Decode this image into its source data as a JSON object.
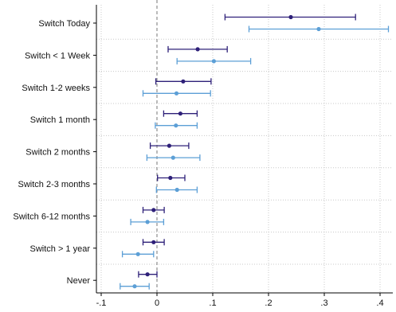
{
  "chart_data": {
    "type": "scatter",
    "subtype": "coefficient-plot-with-ci",
    "categories": [
      "Switch Today",
      "Switch < 1 Week",
      "Switch 1-2 weeks",
      "Switch 1 month",
      "Switch 2 months",
      "Switch 2-3 months",
      "Switch 6-12 months",
      "Switch > 1 year",
      "Never"
    ],
    "series": [
      {
        "color": "#2e2079",
        "estimate": [
          0.24,
          0.073,
          0.047,
          0.042,
          0.022,
          0.024,
          -0.006,
          -0.006,
          -0.017
        ],
        "ci_low": [
          0.122,
          0.02,
          -0.002,
          0.012,
          -0.012,
          0.001,
          -0.025,
          -0.025,
          -0.033
        ],
        "ci_high": [
          0.356,
          0.126,
          0.097,
          0.072,
          0.057,
          0.05,
          0.013,
          0.013,
          0.0
        ]
      },
      {
        "color": "#5c9fd6",
        "estimate": [
          0.29,
          0.102,
          0.035,
          0.034,
          0.029,
          0.036,
          -0.017,
          -0.034,
          -0.04
        ],
        "ci_low": [
          0.165,
          0.036,
          -0.025,
          -0.003,
          -0.018,
          -0.001,
          -0.047,
          -0.062,
          -0.066
        ],
        "ci_high": [
          0.415,
          0.168,
          0.096,
          0.072,
          0.077,
          0.072,
          0.012,
          -0.006,
          -0.014
        ]
      }
    ],
    "x_ticks": [
      -0.1,
      0,
      0.1,
      0.2,
      0.3,
      0.4
    ],
    "x_tick_labels": [
      "-.1",
      "0",
      ".1",
      ".2",
      ".3",
      ".4"
    ],
    "xlim": [
      -0.1,
      0.415
    ],
    "reference_line_x": 0,
    "grid": true,
    "title": "",
    "xlabel": "",
    "ylabel": ""
  }
}
